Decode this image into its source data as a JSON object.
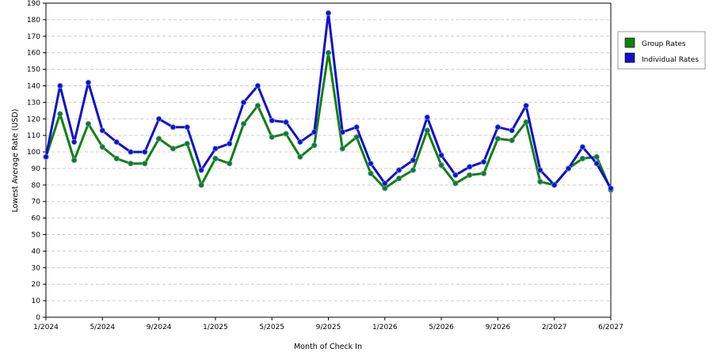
{
  "chart_data": {
    "type": "line",
    "xlabel": "Month of Check In",
    "ylabel": "Lowest Average Rate (USD)",
    "ylim": [
      0,
      190
    ],
    "y_ticks": [
      0,
      10,
      20,
      30,
      40,
      50,
      60,
      70,
      80,
      90,
      100,
      110,
      120,
      130,
      140,
      150,
      160,
      170,
      180,
      190
    ],
    "x_tick_labels": [
      "1/2024",
      "5/2024",
      "9/2024",
      "1/2025",
      "5/2025",
      "9/2025",
      "1/2026",
      "5/2026",
      "9/2026",
      "2/2027",
      "6/2027"
    ],
    "grid": "horizontal dashed",
    "legend_position": "right",
    "series": [
      {
        "name": "Group Rates",
        "color": "#118011",
        "values": [
          97,
          123,
          95,
          117,
          103,
          96,
          93,
          93,
          108,
          102,
          105,
          80,
          96,
          93,
          117,
          128,
          109,
          111,
          97,
          104,
          160,
          102,
          109,
          87,
          78,
          84,
          89,
          113,
          92,
          81,
          86,
          87,
          108,
          107,
          118,
          82,
          80,
          90,
          96,
          97,
          77
        ]
      },
      {
        "name": "Individual Rates",
        "color": "#1111cc",
        "values": [
          97,
          140,
          106,
          142,
          113,
          106,
          100,
          100,
          120,
          115,
          115,
          89,
          102,
          105,
          130,
          140,
          119,
          118,
          106,
          112,
          184,
          112,
          115,
          93,
          81,
          89,
          95,
          121,
          98,
          86,
          91,
          94,
          115,
          113,
          128,
          89,
          80,
          90,
          103,
          93,
          78
        ]
      }
    ]
  }
}
